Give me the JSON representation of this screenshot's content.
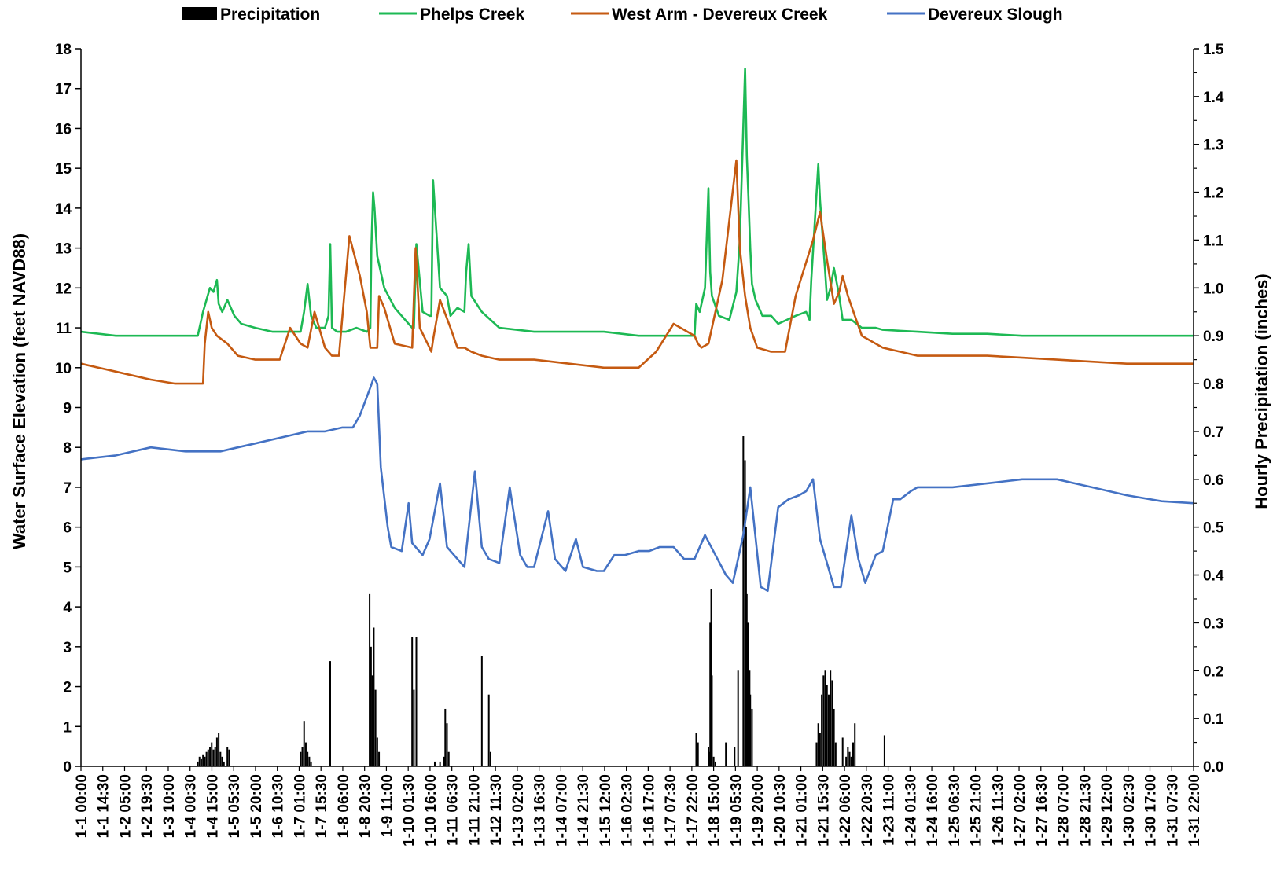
{
  "chart_data": {
    "type": "line",
    "title": "",
    "ylabel": "Water Surface Elevation (feet NAVD88)",
    "y2label": "Hourly Precipitation (inches)",
    "ylim": [
      0,
      18
    ],
    "y2lim": [
      0,
      1.5
    ],
    "yticks": [
      0,
      1,
      2,
      3,
      4,
      5,
      6,
      7,
      8,
      9,
      10,
      11,
      12,
      13,
      14,
      15,
      16,
      17,
      18
    ],
    "y2ticks": [
      "0.0",
      "0.1",
      "0.2",
      "0.3",
      "0.4",
      "0.5",
      "0.6",
      "0.7",
      "0.8",
      "0.9",
      "1.0",
      "1.1",
      "1.2",
      "1.3",
      "1.4",
      "1.5"
    ],
    "x_unit": "day",
    "xlim": [
      0,
      31.9167
    ],
    "xtick_labels": [
      "1-1 00:00",
      "1-1 14:30",
      "1-2 05:00",
      "1-2 19:30",
      "1-3 10:00",
      "1-4 00:30",
      "1-4 15:00",
      "1-5 05:30",
      "1-5 20:00",
      "1-6 10:30",
      "1-7 01:00",
      "1-7 15:30",
      "1-8 06:00",
      "1-8 20:30",
      "1-9 11:00",
      "1-10 01:30",
      "1-10 16:00",
      "1-11 06:30",
      "1-11 21:00",
      "1-12 11:30",
      "1-13 02:00",
      "1-13 16:30",
      "1-14 07:00",
      "1-14 21:30",
      "1-15 12:00",
      "1-16 02:30",
      "1-16 17:00",
      "1-17 07:30",
      "1-17 22:00",
      "1-18 15:00",
      "1-19 05:30",
      "1-19 20:00",
      "1-20 10:30",
      "1-21 01:00",
      "1-21 15:30",
      "1-22 06:00",
      "1-22 20:30",
      "1-23 11:00",
      "1-24 01:30",
      "1-24 16:00",
      "1-25 06:30",
      "1-25 21:00",
      "1-26 11:30",
      "1-27 02:00",
      "1-27 16:30",
      "1-28 07:00",
      "1-28 21:30",
      "1-29 12:00",
      "1-30 02:30",
      "1-30 17:00",
      "1-31 07:30",
      "1-31 22:00"
    ],
    "legend": [
      "Precipitation",
      "Phelps Creek",
      "West Arm - Devereux Creek",
      "Devereux Slough"
    ],
    "legend_position": "top",
    "grid": false,
    "colors": {
      "precipitation": "#000000",
      "phelps": "#1db954",
      "westarm": "#c55a11",
      "slough": "#4472c4"
    },
    "series": [
      {
        "name": "Phelps Creek",
        "axis": "left",
        "x": [
          0,
          1,
          2,
          3,
          3.35,
          3.5,
          3.7,
          3.8,
          3.9,
          3.95,
          4.05,
          4.2,
          4.4,
          4.6,
          5,
          5.5,
          6,
          6.3,
          6.4,
          6.5,
          6.6,
          6.75,
          7,
          7.1,
          7.15,
          7.2,
          7.35,
          7.6,
          7.9,
          8.2,
          8.3,
          8.33,
          8.38,
          8.42,
          8.5,
          8.7,
          9,
          9.4,
          9.5,
          9.55,
          9.62,
          9.8,
          10,
          10.05,
          10.1,
          10.3,
          10.5,
          10.6,
          10.8,
          11.0,
          11.05,
          11.12,
          11.2,
          11.5,
          12,
          13,
          14,
          15,
          16,
          16.5,
          16.85,
          17.6,
          17.65,
          17.75,
          17.9,
          18.0,
          18.05,
          18.1,
          18.3,
          18.6,
          18.8,
          18.9,
          19.05,
          19.1,
          19.15,
          19.2,
          19.25,
          19.35,
          19.55,
          19.8,
          20.0,
          20.5,
          20.8,
          20.9,
          20.95,
          21.15,
          21.2,
          21.35,
          21.4,
          21.5,
          21.6,
          21.75,
          21.85,
          22.1,
          22.4,
          22.8,
          23,
          24,
          25,
          26,
          27,
          28,
          29,
          30,
          31,
          31.9
        ],
        "y": [
          10.9,
          10.8,
          10.8,
          10.8,
          10.8,
          11.4,
          12.0,
          11.9,
          12.2,
          11.6,
          11.4,
          11.7,
          11.3,
          11.1,
          11.0,
          10.9,
          10.9,
          10.9,
          11.4,
          12.1,
          11.3,
          11.0,
          11.0,
          11.3,
          13.1,
          11.0,
          10.9,
          10.9,
          11.0,
          10.9,
          11.0,
          13.0,
          14.4,
          14.0,
          12.8,
          12.0,
          11.5,
          11.1,
          11.0,
          11.0,
          13.1,
          11.4,
          11.3,
          11.3,
          14.7,
          12.0,
          11.8,
          11.3,
          11.5,
          11.4,
          12.4,
          13.1,
          11.8,
          11.4,
          11.0,
          10.9,
          10.9,
          10.9,
          10.8,
          10.8,
          10.8,
          10.8,
          11.6,
          11.4,
          12.0,
          14.5,
          12.4,
          11.8,
          11.3,
          11.2,
          11.9,
          13.2,
          17.5,
          15.3,
          14.2,
          13.0,
          12.1,
          11.7,
          11.3,
          11.3,
          11.1,
          11.3,
          11.4,
          11.2,
          12.2,
          15.1,
          14.2,
          12.4,
          11.7,
          12.0,
          12.5,
          11.8,
          11.2,
          11.2,
          11.0,
          11.0,
          10.95,
          10.9,
          10.85,
          10.85,
          10.8,
          10.8,
          10.8,
          10.8,
          10.8,
          10.8
        ]
      },
      {
        "name": "West Arm - Devereux Creek",
        "axis": "left",
        "x": [
          0,
          1,
          2,
          2.7,
          3.1,
          3.5,
          3.55,
          3.65,
          3.75,
          3.9,
          4.2,
          4.5,
          5,
          5.5,
          5.7,
          6,
          6.3,
          6.5,
          6.7,
          6.9,
          7.0,
          7.2,
          7.4,
          7.7,
          8.0,
          8.2,
          8.3,
          8.5,
          8.55,
          8.7,
          9,
          9.5,
          9.6,
          9.72,
          10,
          10.05,
          10.1,
          10.3,
          10.6,
          10.8,
          11.0,
          11.2,
          11.5,
          12,
          13,
          14,
          15,
          16,
          16.5,
          17,
          17.6,
          17.7,
          17.8,
          18.0,
          18.4,
          18.8,
          18.9,
          19.05,
          19.2,
          19.4,
          19.8,
          20.2,
          20.5,
          21.0,
          21.2,
          21.4,
          21.6,
          21.75,
          21.85,
          22.0,
          22.2,
          22.4,
          23,
          24,
          25,
          26,
          27,
          28,
          29,
          30,
          31,
          31.9
        ],
        "y": [
          10.1,
          9.9,
          9.7,
          9.6,
          9.6,
          9.6,
          10.6,
          11.4,
          11.0,
          10.8,
          10.6,
          10.3,
          10.2,
          10.2,
          10.2,
          11.0,
          10.6,
          10.5,
          11.4,
          10.8,
          10.5,
          10.3,
          10.3,
          13.3,
          12.3,
          11.4,
          10.5,
          10.5,
          11.8,
          11.5,
          10.6,
          10.5,
          13.0,
          11.0,
          10.5,
          10.4,
          10.7,
          11.7,
          11.0,
          10.5,
          10.5,
          10.4,
          10.3,
          10.2,
          10.2,
          10.1,
          10.0,
          10.0,
          10.4,
          11.1,
          10.8,
          10.6,
          10.5,
          10.6,
          12.2,
          15.2,
          13.0,
          11.8,
          11.0,
          10.5,
          10.4,
          10.4,
          11.8,
          13.2,
          13.9,
          12.7,
          11.6,
          11.9,
          12.3,
          11.8,
          11.3,
          10.8,
          10.5,
          10.3,
          10.3,
          10.3,
          10.25,
          10.2,
          10.15,
          10.1,
          10.1,
          10.1
        ]
      },
      {
        "name": "Devereux Slough",
        "axis": "left",
        "x": [
          0,
          1,
          2,
          3,
          4,
          4.5,
          5,
          6,
          6.5,
          7,
          7.5,
          7.8,
          8,
          8.3,
          8.4,
          8.5,
          8.6,
          8.8,
          8.9,
          9.2,
          9.4,
          9.5,
          9.6,
          9.8,
          10.0,
          10.3,
          10.5,
          10.8,
          11.0,
          11.3,
          11.5,
          11.7,
          12.0,
          12.3,
          12.6,
          12.8,
          13.0,
          13.4,
          13.6,
          13.9,
          14.2,
          14.4,
          14.8,
          15.0,
          15.3,
          15.6,
          16,
          16.3,
          16.6,
          17,
          17.3,
          17.6,
          17.9,
          18.2,
          18.5,
          18.7,
          19.0,
          19.2,
          19.5,
          19.7,
          20.0,
          20.3,
          20.6,
          20.8,
          21.0,
          21.2,
          21.6,
          21.8,
          22.1,
          22.3,
          22.5,
          22.8,
          23.0,
          23.3,
          23.5,
          23.8,
          24,
          25,
          26,
          27,
          28,
          28.5,
          29,
          30,
          31,
          31.9
        ],
        "y": [
          7.7,
          7.8,
          8.0,
          7.9,
          7.9,
          8.0,
          8.1,
          8.3,
          8.4,
          8.4,
          8.5,
          8.5,
          8.8,
          9.5,
          9.75,
          9.6,
          7.5,
          6.0,
          5.5,
          5.4,
          6.6,
          5.6,
          5.5,
          5.3,
          5.7,
          7.1,
          5.5,
          5.2,
          5.0,
          7.4,
          5.5,
          5.2,
          5.1,
          7.0,
          5.3,
          5.0,
          5.0,
          6.4,
          5.2,
          4.9,
          5.7,
          5.0,
          4.9,
          4.9,
          5.3,
          5.3,
          5.4,
          5.4,
          5.5,
          5.5,
          5.2,
          5.2,
          5.8,
          5.3,
          4.8,
          4.6,
          5.8,
          7.0,
          4.5,
          4.4,
          6.5,
          6.7,
          6.8,
          6.9,
          7.2,
          5.7,
          4.5,
          4.5,
          6.3,
          5.2,
          4.6,
          5.3,
          5.4,
          6.7,
          6.7,
          6.9,
          7.0,
          7.0,
          7.1,
          7.2,
          7.2,
          7.1,
          7.0,
          6.8,
          6.65,
          6.6
        ]
      },
      {
        "name": "Precipitation",
        "axis": "right",
        "type": "bar",
        "x": [
          3.35,
          3.4,
          3.45,
          3.5,
          3.55,
          3.6,
          3.65,
          3.7,
          3.75,
          3.8,
          3.85,
          3.9,
          3.95,
          4.0,
          4.05,
          4.1,
          4.2,
          4.25,
          6.3,
          6.35,
          6.4,
          6.45,
          6.5,
          6.55,
          6.6,
          7.15,
          8.28,
          8.32,
          8.36,
          8.4,
          8.45,
          8.5,
          8.55,
          9.5,
          9.55,
          9.62,
          10.15,
          10.3,
          10.42,
          10.45,
          10.5,
          10.55,
          11.5,
          11.7,
          11.75,
          17.65,
          17.7,
          18.0,
          18.02,
          18.05,
          18.08,
          18.1,
          18.15,
          18.2,
          18.5,
          18.75,
          18.85,
          19.0,
          19.05,
          19.08,
          19.1,
          19.13,
          19.15,
          19.18,
          19.2,
          19.25,
          21.1,
          21.15,
          21.2,
          21.25,
          21.3,
          21.35,
          21.4,
          21.45,
          21.5,
          21.55,
          21.6,
          21.65,
          21.85,
          21.95,
          22.0,
          22.05,
          22.1,
          22.15,
          22.2,
          23.05
        ],
        "values": [
          0.01,
          0.02,
          0.015,
          0.025,
          0.02,
          0.03,
          0.035,
          0.04,
          0.05,
          0.035,
          0.04,
          0.06,
          0.07,
          0.03,
          0.02,
          0.01,
          0.04,
          0.035,
          0.03,
          0.04,
          0.095,
          0.05,
          0.03,
          0.02,
          0.01,
          0.22,
          0.36,
          0.25,
          0.19,
          0.29,
          0.16,
          0.06,
          0.03,
          0.27,
          0.16,
          0.27,
          0.01,
          0.01,
          0.02,
          0.12,
          0.09,
          0.03,
          0.23,
          0.15,
          0.03,
          0.07,
          0.05,
          0.04,
          0.03,
          0.3,
          0.37,
          0.19,
          0.02,
          0.01,
          0.05,
          0.04,
          0.2,
          0.69,
          0.64,
          0.5,
          0.36,
          0.3,
          0.25,
          0.2,
          0.15,
          0.12,
          0.05,
          0.09,
          0.07,
          0.15,
          0.19,
          0.2,
          0.17,
          0.15,
          0.2,
          0.18,
          0.12,
          0.05,
          0.06,
          0.02,
          0.04,
          0.03,
          0.02,
          0.05,
          0.09,
          0.065
        ]
      }
    ]
  }
}
